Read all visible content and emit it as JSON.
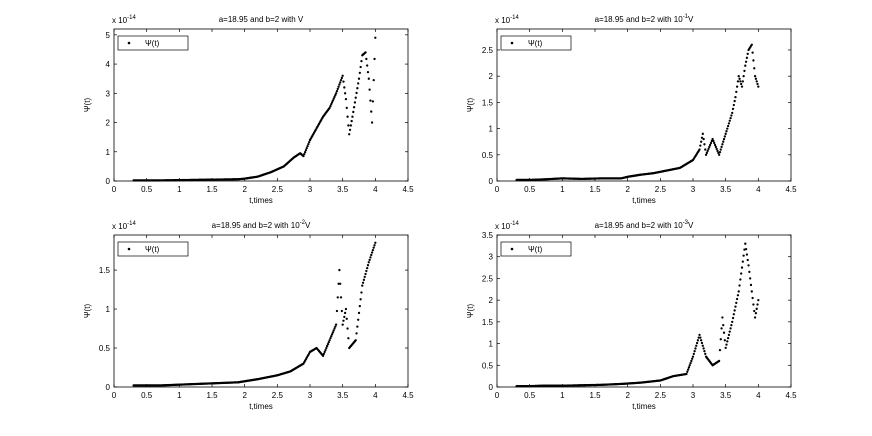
{
  "chart_data": [
    {
      "type": "scatter",
      "title": "a=18.95 and b=2 with V",
      "xlabel": "t,times",
      "ylabel": "Ψ(t)",
      "exponent": "x 10",
      "exponent_power": "-14",
      "xlim": [
        0,
        4.5
      ],
      "ylim": [
        0,
        5.2
      ],
      "xticks": [
        "0",
        "0.5",
        "1",
        "1.5",
        "2",
        "2.5",
        "3",
        "3.5",
        "4",
        "4.5"
      ],
      "yticks": [
        "0",
        "1",
        "2",
        "3",
        "4",
        "5"
      ],
      "ytick_values": [
        0,
        1,
        2,
        3,
        4,
        5
      ],
      "legend": "Ψ(t)",
      "legend_position": "top-left",
      "marker_color": "#000000",
      "series": [
        {
          "values": [
            [
              0.3,
              0.02
            ],
            [
              0.5,
              0.02
            ],
            [
              0.7,
              0.02
            ],
            [
              1.0,
              0.03
            ],
            [
              1.3,
              0.04
            ],
            [
              1.6,
              0.05
            ],
            [
              1.9,
              0.06
            ],
            [
              2.0,
              0.08
            ],
            [
              2.2,
              0.15
            ],
            [
              2.4,
              0.3
            ],
            [
              2.6,
              0.5
            ],
            [
              2.75,
              0.8
            ],
            [
              2.85,
              0.95
            ],
            [
              2.9,
              0.85
            ],
            [
              3.0,
              1.4
            ],
            [
              3.1,
              1.8
            ],
            [
              3.2,
              2.2
            ],
            [
              3.3,
              2.5
            ],
            [
              3.4,
              3.0
            ],
            [
              3.5,
              3.6
            ],
            [
              3.55,
              2.8
            ],
            [
              3.6,
              1.6
            ],
            [
              3.65,
              2.2
            ],
            [
              3.75,
              3.5
            ],
            [
              3.8,
              4.3
            ],
            [
              3.85,
              4.4
            ],
            [
              3.9,
              3.5
            ],
            [
              3.95,
              2.0
            ],
            [
              4.0,
              4.9
            ]
          ]
        }
      ]
    },
    {
      "type": "scatter",
      "title": "a=18.95 and b=2 with 10",
      "title_power": "-1",
      "title_suffix": "V",
      "xlabel": "t,times",
      "ylabel": "Ψ(t)",
      "exponent": "x 10",
      "exponent_power": "-14",
      "xlim": [
        0,
        4.5
      ],
      "ylim": [
        0,
        2.9
      ],
      "xticks": [
        "0",
        "0.5",
        "1",
        "1.5",
        "2",
        "2.5",
        "3",
        "3.5",
        "4",
        "4.5"
      ],
      "yticks": [
        "0",
        "0.5",
        "1",
        "1.5",
        "2",
        "2.5"
      ],
      "ytick_values": [
        0,
        0.5,
        1,
        1.5,
        2,
        2.5
      ],
      "legend": "Ψ(t)",
      "legend_position": "top-left",
      "marker_color": "#000000",
      "series": [
        {
          "values": [
            [
              0.3,
              0.02
            ],
            [
              0.5,
              0.02
            ],
            [
              0.7,
              0.03
            ],
            [
              1.0,
              0.05
            ],
            [
              1.3,
              0.04
            ],
            [
              1.6,
              0.05
            ],
            [
              1.9,
              0.05
            ],
            [
              2.0,
              0.08
            ],
            [
              2.2,
              0.12
            ],
            [
              2.4,
              0.15
            ],
            [
              2.6,
              0.2
            ],
            [
              2.8,
              0.25
            ],
            [
              3.0,
              0.4
            ],
            [
              3.1,
              0.6
            ],
            [
              3.15,
              0.9
            ],
            [
              3.2,
              0.5
            ],
            [
              3.3,
              0.8
            ],
            [
              3.4,
              0.5
            ],
            [
              3.5,
              0.9
            ],
            [
              3.6,
              1.3
            ],
            [
              3.65,
              1.6
            ],
            [
              3.7,
              2.0
            ],
            [
              3.75,
              1.8
            ],
            [
              3.8,
              2.2
            ],
            [
              3.85,
              2.5
            ],
            [
              3.9,
              2.6
            ],
            [
              3.95,
              2.0
            ],
            [
              4.0,
              1.8
            ]
          ]
        }
      ]
    },
    {
      "type": "scatter",
      "title": "a=18.95  and b=2 with 10",
      "title_power": "-2",
      "title_suffix": "V",
      "xlabel": "t,times",
      "ylabel": "Ψ(t)",
      "exponent": "x 10",
      "exponent_power": "-14",
      "xlim": [
        0,
        4.5
      ],
      "ylim": [
        0,
        1.95
      ],
      "xticks": [
        "0",
        "0.5",
        "1",
        "1.5",
        "2",
        "2.5",
        "3",
        "3.5",
        "4",
        "4.5"
      ],
      "yticks": [
        "0",
        "0.5",
        "1",
        "1.5"
      ],
      "ytick_values": [
        0,
        0.5,
        1,
        1.5
      ],
      "legend": "Ψ(t)",
      "legend_position": "top-left",
      "marker_color": "#000000",
      "series": [
        {
          "values": [
            [
              0.3,
              0.02
            ],
            [
              0.5,
              0.02
            ],
            [
              0.7,
              0.02
            ],
            [
              1.0,
              0.03
            ],
            [
              1.3,
              0.04
            ],
            [
              1.6,
              0.05
            ],
            [
              1.9,
              0.06
            ],
            [
              2.2,
              0.1
            ],
            [
              2.5,
              0.15
            ],
            [
              2.7,
              0.2
            ],
            [
              2.9,
              0.3
            ],
            [
              3.0,
              0.45
            ],
            [
              3.1,
              0.5
            ],
            [
              3.2,
              0.4
            ],
            [
              3.3,
              0.6
            ],
            [
              3.4,
              0.8
            ],
            [
              3.45,
              1.5
            ],
            [
              3.5,
              0.8
            ],
            [
              3.55,
              1.0
            ],
            [
              3.6,
              0.5
            ],
            [
              3.7,
              0.6
            ],
            [
              3.8,
              1.3
            ],
            [
              3.9,
              1.6
            ],
            [
              4.0,
              1.85
            ]
          ]
        }
      ]
    },
    {
      "type": "scatter",
      "title": "a=18.95  and b=2 with 10",
      "title_power": "-3",
      "title_suffix": "V",
      "xlabel": "t,times",
      "ylabel": "Ψ(t)",
      "exponent": "x 10",
      "exponent_power": "-14",
      "xlim": [
        0,
        4.5
      ],
      "ylim": [
        0,
        3.5
      ],
      "xticks": [
        "0",
        "0.5",
        "1",
        "1.5",
        "2",
        "2.5",
        "3",
        "3.5",
        "4",
        "4.5"
      ],
      "yticks": [
        "0",
        "0.5",
        "1",
        "1.5",
        "2",
        "2.5",
        "3",
        "3.5"
      ],
      "ytick_values": [
        0,
        0.5,
        1,
        1.5,
        2,
        2.5,
        3,
        3.5
      ],
      "legend": "Ψ(t)",
      "legend_position": "top-left",
      "marker_color": "#000000",
      "series": [
        {
          "values": [
            [
              0.3,
              0.02
            ],
            [
              0.5,
              0.02
            ],
            [
              0.7,
              0.03
            ],
            [
              1.0,
              0.03
            ],
            [
              1.3,
              0.04
            ],
            [
              1.6,
              0.05
            ],
            [
              1.9,
              0.07
            ],
            [
              2.2,
              0.1
            ],
            [
              2.5,
              0.15
            ],
            [
              2.7,
              0.25
            ],
            [
              2.9,
              0.3
            ],
            [
              3.0,
              0.7
            ],
            [
              3.1,
              1.2
            ],
            [
              3.2,
              0.7
            ],
            [
              3.3,
              0.5
            ],
            [
              3.4,
              0.6
            ],
            [
              3.45,
              1.6
            ],
            [
              3.5,
              0.9
            ],
            [
              3.6,
              1.5
            ],
            [
              3.7,
              2.2
            ],
            [
              3.8,
              3.3
            ],
            [
              3.85,
              2.8
            ],
            [
              3.9,
              2.2
            ],
            [
              3.95,
              1.6
            ],
            [
              4.0,
              2.0
            ]
          ]
        }
      ]
    }
  ]
}
